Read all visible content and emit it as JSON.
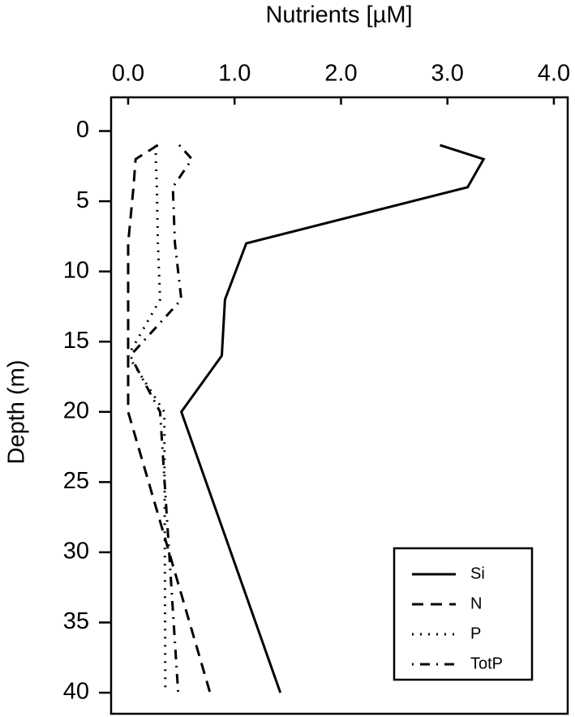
{
  "chart_data": {
    "type": "profile",
    "x_label": "Nutrients [µM]",
    "y_label": "Depth (m)",
    "xlim": [
      -0.16,
      4.13
    ],
    "ylim": [
      -2.4,
      41.5
    ],
    "y_reversed": true,
    "xticks": [
      {
        "value": 0,
        "label": "0.0"
      },
      {
        "value": 1,
        "label": "1.0"
      },
      {
        "value": 2,
        "label": "2.0"
      },
      {
        "value": 3,
        "label": "3.0"
      },
      {
        "value": 4,
        "label": "4.0"
      }
    ],
    "yticks": [
      0,
      5,
      10,
      15,
      20,
      25,
      30,
      35,
      40
    ],
    "legend": "bottom-right",
    "series": [
      {
        "name": "Si",
        "color": "#000000",
        "dash": "solid",
        "depth": [
          1,
          2,
          4,
          8,
          12,
          16,
          20,
          40
        ],
        "values": [
          2.93,
          3.34,
          3.19,
          1.11,
          0.91,
          0.88,
          0.5,
          1.43
        ]
      },
      {
        "name": "N",
        "color": "#000000",
        "dash": "dashed",
        "depth": [
          1,
          2,
          4,
          8,
          12,
          16,
          20,
          40
        ],
        "values": [
          0.28,
          0.07,
          0.05,
          0.0,
          0.0,
          0.0,
          0.0,
          0.77
        ]
      },
      {
        "name": "P",
        "color": "#000000",
        "dash": "dotted",
        "depth": [
          1,
          2,
          4,
          8,
          12,
          16,
          20,
          40
        ],
        "values": [
          0.26,
          0.26,
          0.27,
          0.28,
          0.3,
          0.0,
          0.34,
          0.35
        ]
      },
      {
        "name": "TotP",
        "color": "#000000",
        "dash": "dotdash",
        "depth": [
          1,
          2,
          4,
          8,
          12,
          16,
          20,
          40
        ],
        "values": [
          0.48,
          0.6,
          0.42,
          0.44,
          0.5,
          0.02,
          0.3,
          0.47
        ]
      }
    ]
  }
}
